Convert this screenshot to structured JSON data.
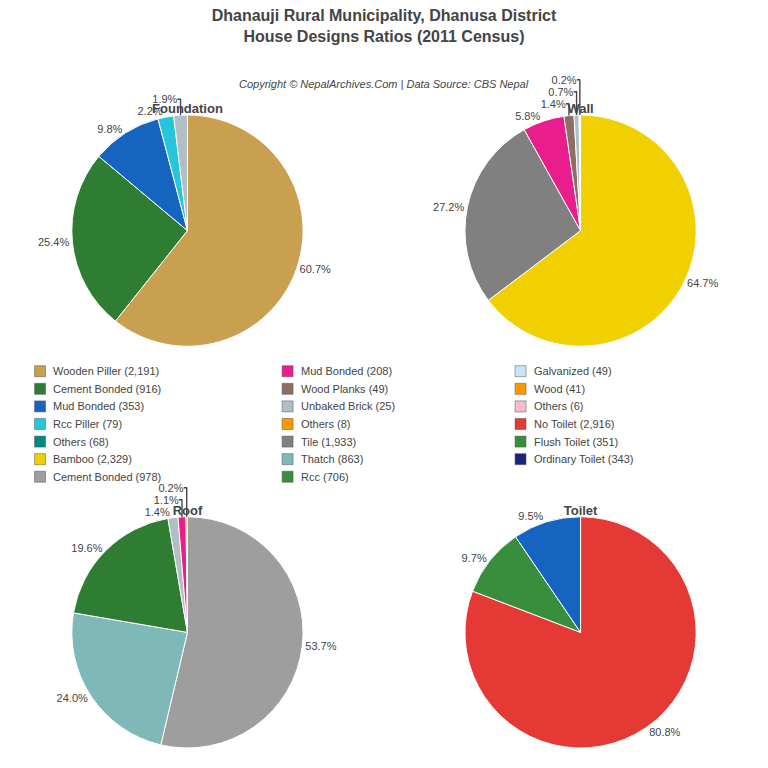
{
  "chart_data": {
    "type": "pie",
    "title": "Dhanauji Rural Municipality, Dhanusa District",
    "subtitle": "House Designs Ratios (2011 Census)",
    "data_labels": true,
    "series": [
      {
        "name": "Foundation",
        "values": [
          60.7,
          25.4,
          9.8,
          2.2,
          1.9
        ],
        "value_labels": [
          "60.7%",
          "25.4%",
          "9.8%",
          "2.2%",
          "1.9%"
        ],
        "colors": [
          "#c8a050",
          "#2e7d32",
          "#1565c0",
          "#26c6da",
          "#b0bec5"
        ]
      },
      {
        "name": "Wall",
        "values": [
          64.7,
          27.2,
          5.8,
          1.4,
          0.7,
          0.2
        ],
        "value_labels": [
          "64.7%",
          "27.2%",
          "5.8%",
          "1.4%",
          "0.7%",
          "0.2%"
        ],
        "colors": [
          "#f0d000",
          "#808080",
          "#e91e8c",
          "#8d6e63",
          "#b0bec5",
          "#ffffff"
        ]
      },
      {
        "name": "Roof",
        "values": [
          53.7,
          24.0,
          19.6,
          1.4,
          1.1,
          0.2
        ],
        "value_labels": [
          "53.7%",
          "24.0%",
          "19.6%",
          "1.4%",
          "1.1%",
          "0.2%"
        ],
        "colors": [
          "#9e9e9e",
          "#7eb8b8",
          "#2e7d32",
          "#b0bec5",
          "#e91e8c",
          "#ff9800"
        ]
      },
      {
        "name": "Toilet",
        "values": [
          80.8,
          9.7,
          9.5
        ],
        "value_labels": [
          "80.8%",
          "9.7%",
          "9.5%"
        ],
        "colors": [
          "#e53935",
          "#388e3c",
          "#1565c0"
        ]
      }
    ],
    "annotations": [
      {
        "text": "Copyright © NepalArchives.Com | Data Source: CBS Nepal"
      },
      {
        "text": "Wooden Piller (2,191)",
        "color": "#c8a050"
      },
      {
        "text": "Cement Bonded (916)",
        "color": "#2e7d32"
      },
      {
        "text": "Mud Bonded (353)",
        "color": "#1565c0"
      },
      {
        "text": "Rcc Piller (79)",
        "color": "#26c6da"
      },
      {
        "text": "Others (68)",
        "color": "#00897b"
      },
      {
        "text": "Bamboo (2,329)",
        "color": "#f0d000"
      },
      {
        "text": "Cement Bonded (978)",
        "color": "#9e9e9e"
      },
      {
        "text": "Mud Bonded (208)",
        "color": "#e91e8c"
      },
      {
        "text": "Wood Planks (49)",
        "color": "#8d6e63"
      },
      {
        "text": "Unbaked Brick (25)",
        "color": "#b0bec5"
      },
      {
        "text": "Others (8)",
        "color": "#ff9800"
      },
      {
        "text": "Tile (1,933)",
        "color": "#808080"
      },
      {
        "text": "Thatch (863)",
        "color": "#7eb8b8"
      },
      {
        "text": "Rcc (706)",
        "color": "#388e3c"
      },
      {
        "text": "Galvanized (49)",
        "color": "#c8e6f8"
      },
      {
        "text": "Wood (41)",
        "color": "#ff9800"
      },
      {
        "text": "Others (6)",
        "color": "#f8bbd0"
      },
      {
        "text": "No Toilet (2,916)",
        "color": "#e53935"
      },
      {
        "text": "Flush Toilet (351)",
        "color": "#388e3c"
      },
      {
        "text": "Ordinary Toilet (343)",
        "color": "#1a237e"
      }
    ]
  }
}
